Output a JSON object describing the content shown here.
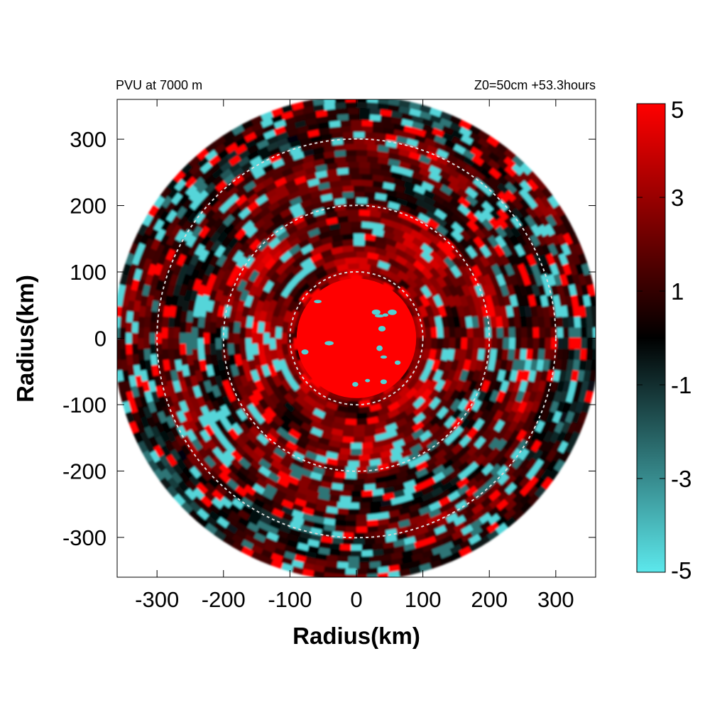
{
  "chart_data": {
    "type": "heatmap",
    "title_left": "PVU at  7000 m",
    "title_right": "Z0=50cm  +53.3hours",
    "xlabel": "Radius(km)",
    "ylabel": "Radius(km)",
    "xlim": [
      -360,
      360
    ],
    "ylim": [
      -360,
      360
    ],
    "x_ticks": [
      -300,
      -200,
      -100,
      0,
      100,
      200,
      300
    ],
    "y_ticks": [
      300,
      200,
      100,
      0,
      -100,
      -200,
      -300
    ],
    "colorbar": {
      "range": [
        -5,
        5
      ],
      "ticks": [
        5,
        3,
        1,
        -1,
        -3,
        -5
      ],
      "colors": [
        "#5ce8ec",
        "#000000",
        "#ff0000"
      ]
    },
    "domain_radius_km": 360,
    "reference_circles_km": [
      100,
      200,
      300
    ],
    "field_summary": {
      "core": {
        "radius_km": 90,
        "value": 5
      },
      "rings": [
        {
          "inner_km": 90,
          "outer_km": 200,
          "mean_value": 2.5
        },
        {
          "inner_km": 200,
          "outer_km": 300,
          "mean_value": 1.5
        },
        {
          "inner_km": 300,
          "outer_km": 360,
          "mean_value": 0.8
        }
      ]
    }
  }
}
